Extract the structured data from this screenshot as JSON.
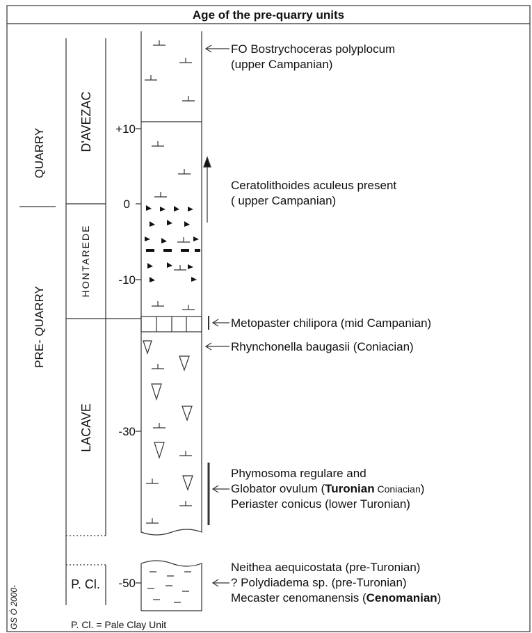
{
  "header": {
    "title": "Age of the pre-quarry units"
  },
  "columns": {
    "quarry": "QUARRY",
    "pre_quarry": "PRE- QUARRY"
  },
  "units": [
    "D'AVEZAC",
    "HONTAREDE",
    "LACAVE",
    "P. Cl."
  ],
  "depth_ticks": [
    "+10",
    "0",
    "-10",
    "-30",
    "-50"
  ],
  "annotations": [
    {
      "lines": [
        [
          "FO Bostrychoceras polyplocum"
        ],
        [
          "(upper Campanian)"
        ]
      ]
    },
    {
      "lines": [
        [
          "Ceratolithoides aculeus present"
        ],
        [
          "( upper Campanian)"
        ]
      ]
    },
    {
      "lines": [
        [
          "Metopaster chilipora  (mid Campanian)"
        ]
      ]
    },
    {
      "lines": [
        [
          "Rhynchonella baugasii (Coniacian)"
        ]
      ]
    },
    {
      "lines": [
        [
          "Phymosoma regulare and"
        ],
        [
          "Globator ovulum (",
          "Turonian",
          " Coniacian",
          ")"
        ],
        [
          "Periaster conicus  (lower Turonian)"
        ]
      ]
    },
    {
      "lines": [
        [
          "Neithea aequicostata (pre-Turonian)"
        ],
        [
          "? Polydiadema sp. (pre-Turonian)"
        ],
        [
          "Mecaster  cenomanensis (",
          "Cenomanian",
          ")"
        ]
      ]
    }
  ],
  "footer": {
    "legend": "P. Cl. = Pale Clay Unit",
    "credit": "GS Ó 2000-"
  }
}
